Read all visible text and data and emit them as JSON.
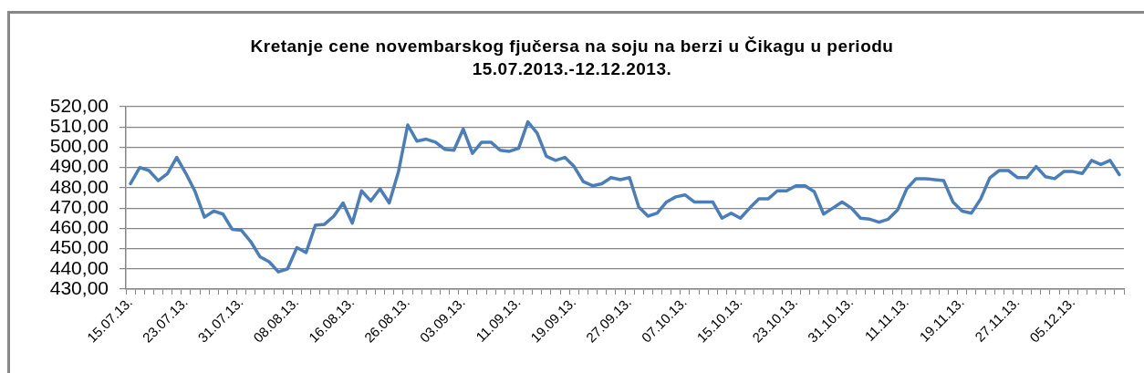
{
  "chart_data": {
    "type": "line",
    "title": "Kretanje cene novembarskog fjučersa na soju na berzi u Čikagu u periodu 15.07.2013.-12.12.2013.",
    "categories": [
      "15.07.13.",
      null,
      null,
      null,
      null,
      null,
      "23.07.13.",
      null,
      null,
      null,
      null,
      null,
      "31.07.13.",
      null,
      null,
      null,
      null,
      null,
      "08.08.13.",
      null,
      null,
      null,
      null,
      null,
      "16.08.13.",
      null,
      null,
      null,
      null,
      null,
      "26.08.13.",
      null,
      null,
      null,
      null,
      null,
      "03.09.13.",
      null,
      null,
      null,
      null,
      null,
      "11.09.13.",
      null,
      null,
      null,
      null,
      null,
      "19.09.13.",
      null,
      null,
      null,
      null,
      null,
      "27.09.13.",
      null,
      null,
      null,
      null,
      null,
      "07.10.13.",
      null,
      null,
      null,
      null,
      null,
      "15.10.13.",
      null,
      null,
      null,
      null,
      null,
      "23.10.13.",
      null,
      null,
      null,
      null,
      null,
      "31.10.13.",
      null,
      null,
      null,
      null,
      null,
      "11.11.13.",
      null,
      null,
      null,
      null,
      null,
      "19.11.13.",
      null,
      null,
      null,
      null,
      null,
      "27.11.13.",
      null,
      null,
      null,
      null,
      null,
      "05.12.13.",
      null,
      null,
      null,
      null,
      null
    ],
    "series": [
      {
        "color": "#4a7ebb",
        "values": [
          482,
          490,
          488.5,
          483.5,
          487,
          495,
          487,
          478,
          465.5,
          468.5,
          467,
          459.5,
          459,
          453.5,
          446,
          443.5,
          438.5,
          440,
          450.5,
          448,
          461.5,
          462,
          466,
          472.5,
          462.5,
          478.5,
          473.5,
          479.5,
          472.5,
          488,
          511,
          503,
          504,
          502.5,
          499,
          498.5,
          509,
          497,
          502.5,
          502.5,
          498.5,
          498,
          499.5,
          512.5,
          507,
          495.5,
          493.5,
          495,
          490.5,
          483,
          481,
          482,
          485,
          484,
          485,
          470.5,
          466,
          467.5,
          473,
          475.5,
          476.5,
          473,
          473,
          473,
          465,
          467.5,
          465,
          470,
          474.5,
          474.5,
          478.5,
          478.5,
          481,
          481,
          478,
          467,
          470,
          473,
          470,
          465,
          464.5,
          463,
          464.5,
          469,
          479.5,
          484.5,
          484.5,
          484,
          483.5,
          473,
          468.5,
          467.5,
          474.5,
          485,
          488.5,
          488.5,
          485,
          485,
          490.5,
          485.5,
          484.5,
          488,
          488,
          487,
          493.5,
          491.5,
          493.5,
          486.5
        ]
      }
    ],
    "ylim": [
      430,
      520
    ],
    "yticks": [
      {
        "value": 430,
        "label": "430,00"
      },
      {
        "value": 440,
        "label": "440,00"
      },
      {
        "value": 450,
        "label": "450,00"
      },
      {
        "value": 460,
        "label": "460,00"
      },
      {
        "value": 470,
        "label": "470,00"
      },
      {
        "value": 480,
        "label": "480,00"
      },
      {
        "value": 490,
        "label": "490,00"
      },
      {
        "value": 500,
        "label": "500,00"
      },
      {
        "value": 510,
        "label": "510,00"
      },
      {
        "value": 520,
        "label": "520,00"
      }
    ],
    "grid": "y",
    "marker": "none",
    "line_style": "solid"
  }
}
